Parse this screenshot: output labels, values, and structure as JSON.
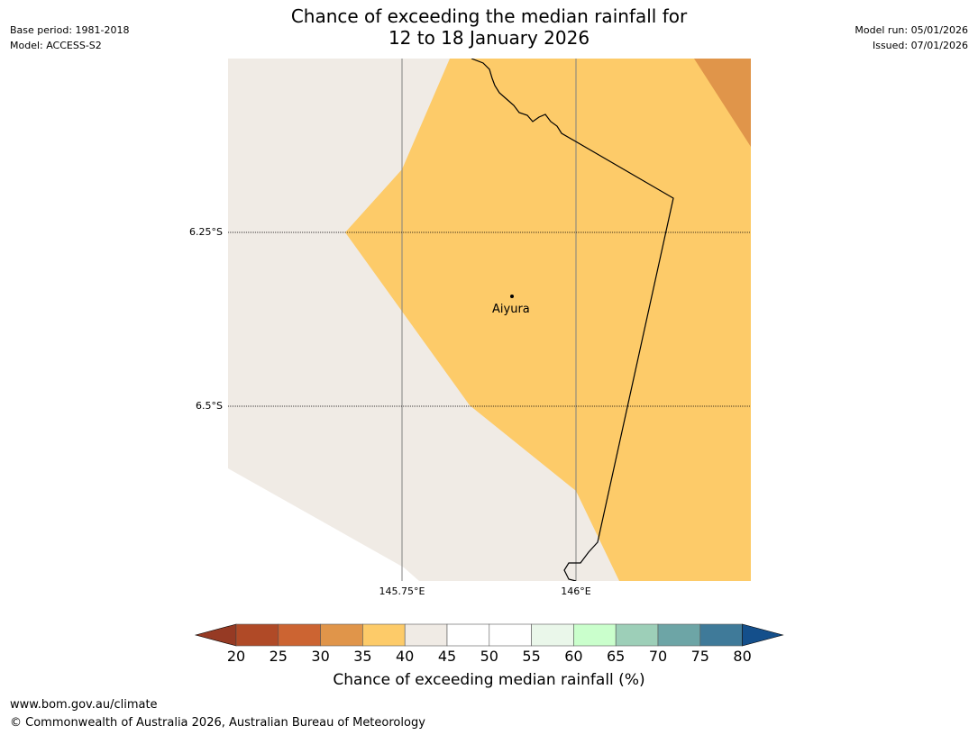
{
  "header": {
    "title_line1": "Chance of exceeding the median rainfall for",
    "title_line2": "12 to 18 January 2026",
    "base_period": "Base period: 1981-2018",
    "model": "Model: ACCESS-S2",
    "model_run": "Model run: 05/01/2026",
    "issued": "Issued: 07/01/2026"
  },
  "map": {
    "lat_labels": [
      "6.25°S",
      "6.5°S"
    ],
    "lon_labels": [
      "145.75°E",
      "146°E"
    ],
    "place": {
      "name": "Aiyura",
      "icon": "location-dot-icon"
    }
  },
  "colorbar": {
    "ticks": [
      "20",
      "25",
      "30",
      "35",
      "40",
      "45",
      "50",
      "55",
      "60",
      "65",
      "70",
      "75",
      "80"
    ],
    "colors": [
      "#b04a27",
      "#cc6432",
      "#e0954a",
      "#fdcb69",
      "#f0ebe5",
      "#ffffff",
      "#ffffff",
      "#eaf7ea",
      "#caffcc",
      "#9dcfb8",
      "#6da5a6",
      "#3f7a99"
    ],
    "under_color": "#963a24",
    "over_color": "#144f8b",
    "label": "Chance of exceeding median rainfall (%)"
  },
  "footer": {
    "url": "www.bom.gov.au/climate",
    "copyright": "© Commonwealth of Australia 2026, Australian Bureau of Meteorology"
  }
}
